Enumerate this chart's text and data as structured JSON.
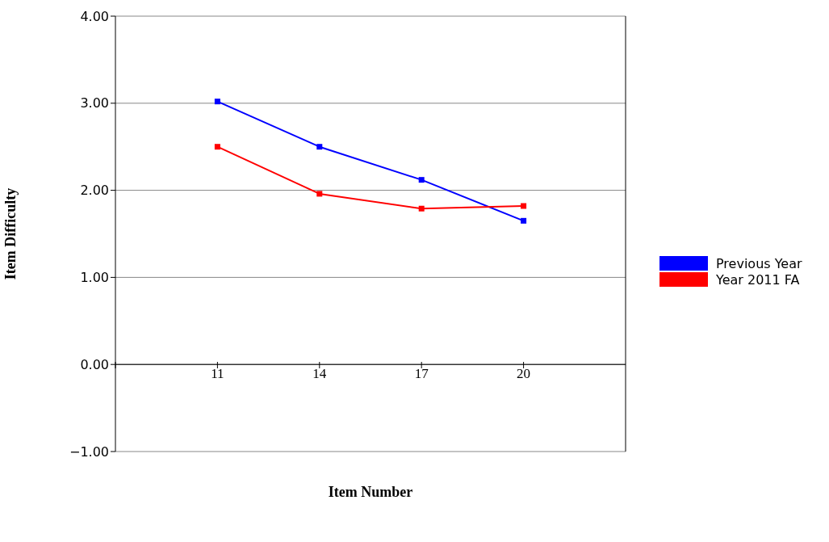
{
  "chart_data": {
    "type": "line",
    "xlabel": "Item Number",
    "ylabel": "Item Difficulty",
    "x": [
      11,
      14,
      17,
      20
    ],
    "xlim": [
      8,
      23
    ],
    "xticks": [
      {
        "value": 8,
        "label": null
      },
      11,
      14,
      17,
      20
    ],
    "ylim": [
      -1,
      4
    ],
    "yticks": [
      {
        "value": -1,
        "label": "−1.00"
      },
      {
        "value": 0,
        "label": "0.00"
      },
      {
        "value": 1,
        "label": "1.00"
      },
      {
        "value": 2,
        "label": "2.00"
      },
      {
        "value": 3,
        "label": "3.00"
      },
      {
        "value": 4,
        "label": "4.00"
      }
    ],
    "series": [
      {
        "name": "Previous Year",
        "color": "#0000ff",
        "values": [
          3.02,
          2.5,
          2.12,
          1.65
        ]
      },
      {
        "name": "Year 2011 FA",
        "color": "#ff0000",
        "values": [
          2.5,
          1.96,
          1.79,
          1.82
        ]
      }
    ],
    "grid": "y",
    "legend": "right",
    "marker": "square",
    "line_style": "solid"
  }
}
